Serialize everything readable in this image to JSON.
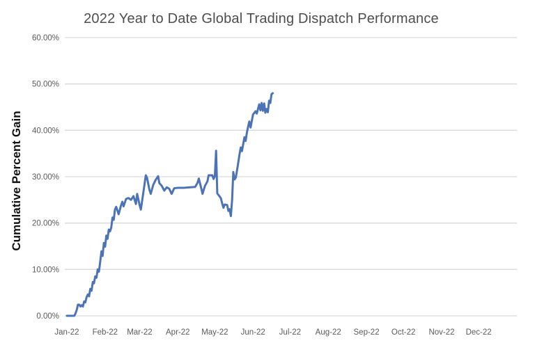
{
  "title": "2022 Year to Date Global Trading Dispatch Performance",
  "colors": {
    "line": "#4c74b4",
    "gridline": "#d9d9d9",
    "tick_text": "#595959",
    "title_text": "#4d4d4d",
    "y_axis_title_text": "#111111",
    "background": "#ffffff"
  },
  "chart_data": {
    "type": "line",
    "title": "2022 Year to Date Global Trading Dispatch Performance",
    "xlabel": "",
    "ylabel": "Cumulative Percent Gain",
    "ylim": [
      0,
      60
    ],
    "y_tick_step": 10,
    "y_tick_labels": [
      "0.00%",
      "10.00%",
      "20.00%",
      "30.00%",
      "40.00%",
      "50.00%",
      "60.00%"
    ],
    "x_tick_labels": [
      "Jan-22",
      "Feb-22",
      "Mar-22",
      "Apr-22",
      "May-22",
      "Jun-22",
      "Jul-22",
      "Aug-22",
      "Sep-22",
      "Oct-22",
      "Nov-22",
      "Dec-22"
    ],
    "x_axis_type": "day_of_year_2022",
    "x_range_days": [
      1,
      366
    ],
    "month_start_days": [
      1,
      32,
      60,
      91,
      121,
      152,
      182,
      213,
      244,
      274,
      305,
      335
    ],
    "grid": "horizontal",
    "legend": "none",
    "series": [
      {
        "name": "Cumulative percent gain",
        "points_format": [
          "day_of_year",
          "percent"
        ],
        "points": [
          [
            1,
            0
          ],
          [
            4,
            0
          ],
          [
            7,
            0
          ],
          [
            8,
            0.5
          ],
          [
            9,
            1.3
          ],
          [
            10,
            2.4
          ],
          [
            11,
            2.4
          ],
          [
            12,
            2.0
          ],
          [
            13,
            2.3
          ],
          [
            14,
            2.0
          ],
          [
            15,
            3.1
          ],
          [
            16,
            2.9
          ],
          [
            17,
            4.0
          ],
          [
            18,
            4.6
          ],
          [
            19,
            4.2
          ],
          [
            20,
            5.8
          ],
          [
            21,
            5.4
          ],
          [
            22,
            7.3
          ],
          [
            23,
            7.0
          ],
          [
            24,
            8.5
          ],
          [
            25,
            8.2
          ],
          [
            26,
            10.0
          ],
          [
            27,
            9.5
          ],
          [
            28,
            11.6
          ],
          [
            29,
            13.9
          ],
          [
            30,
            12.9
          ],
          [
            31,
            15.7
          ],
          [
            32,
            14.9
          ],
          [
            33,
            17.3
          ],
          [
            34,
            16.6
          ],
          [
            35,
            18.6
          ],
          [
            36,
            18.2
          ],
          [
            37,
            19.0
          ],
          [
            38,
            21.2
          ],
          [
            39,
            20.7
          ],
          [
            40,
            22.9
          ],
          [
            41,
            23.5
          ],
          [
            43,
            21.9
          ],
          [
            45,
            23.9
          ],
          [
            46,
            24.6
          ],
          [
            47,
            23.6
          ],
          [
            49,
            25.2
          ],
          [
            51,
            25.4
          ],
          [
            53,
            25.0
          ],
          [
            55,
            25.8
          ],
          [
            57,
            24.1
          ],
          [
            58,
            26.3
          ],
          [
            60,
            23.9
          ],
          [
            61,
            22.9
          ],
          [
            63,
            26.5
          ],
          [
            65,
            30.3
          ],
          [
            66,
            29.8
          ],
          [
            68,
            27.1
          ],
          [
            69,
            26.3
          ],
          [
            71,
            28.2
          ],
          [
            73,
            29.3
          ],
          [
            75,
            30.1
          ],
          [
            76,
            28.6
          ],
          [
            78,
            28.0
          ],
          [
            80,
            27.0
          ],
          [
            82,
            27.7
          ],
          [
            84,
            27.4
          ],
          [
            86,
            26.3
          ],
          [
            88,
            27.5
          ],
          [
            91,
            27.6
          ],
          [
            96,
            27.6
          ],
          [
            101,
            27.7
          ],
          [
            105,
            27.8
          ],
          [
            107,
            28.7
          ],
          [
            108,
            29.6
          ],
          [
            110,
            27.5
          ],
          [
            111,
            26.3
          ],
          [
            113,
            28.0
          ],
          [
            115,
            29.0
          ],
          [
            116,
            30.3
          ],
          [
            119,
            30.3
          ],
          [
            120,
            29.5
          ],
          [
            121,
            30.1
          ],
          [
            122,
            35.6
          ],
          [
            123,
            26.4
          ],
          [
            125,
            25.7
          ],
          [
            126,
            25.3
          ],
          [
            127,
            24.2
          ],
          [
            128,
            23.3
          ],
          [
            129,
            24.0
          ],
          [
            131,
            23.9
          ],
          [
            132,
            22.6
          ],
          [
            133,
            23.0
          ],
          [
            134,
            21.5
          ],
          [
            135,
            25.0
          ],
          [
            136,
            31.0
          ],
          [
            137,
            29.4
          ],
          [
            138,
            29.8
          ],
          [
            139,
            31.3
          ],
          [
            140,
            33.0
          ],
          [
            141,
            34.8
          ],
          [
            142,
            36.3
          ],
          [
            143,
            35.5
          ],
          [
            144,
            37.0
          ],
          [
            145,
            38.5
          ],
          [
            146,
            37.7
          ],
          [
            147,
            39.5
          ],
          [
            148,
            40.8
          ],
          [
            149,
            41.9
          ],
          [
            150,
            40.6
          ],
          [
            152,
            43.4
          ],
          [
            154,
            44.1
          ],
          [
            155,
            43.6
          ],
          [
            157,
            45.6
          ],
          [
            158,
            44.3
          ],
          [
            159,
            45.9
          ],
          [
            160,
            44.2
          ],
          [
            161,
            45.8
          ],
          [
            162,
            43.8
          ],
          [
            163,
            44.6
          ],
          [
            164,
            43.9
          ],
          [
            165,
            46.4
          ],
          [
            166,
            45.9
          ],
          [
            167,
            47.8
          ],
          [
            168,
            48.0
          ]
        ]
      }
    ]
  }
}
